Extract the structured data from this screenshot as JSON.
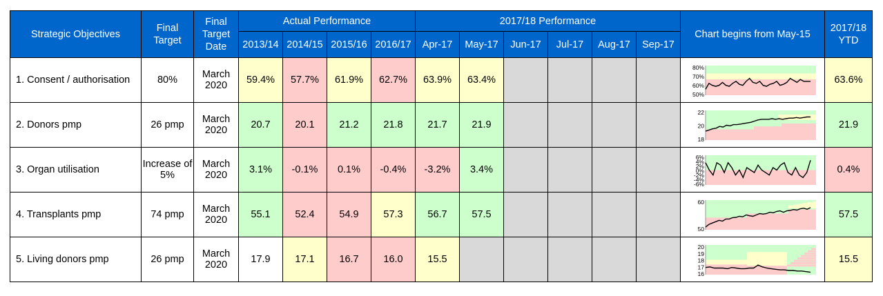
{
  "header": {
    "objectives": "Strategic Objectives",
    "final_target": "Final Target",
    "final_target_date": "Final Target Date",
    "actual_performance": "Actual Performance",
    "current_performance": "2017/18 Performance",
    "chart": "Chart begins from May-15",
    "ytd": "2017/18 YTD",
    "years": [
      "2013/14",
      "2014/15",
      "2015/16",
      "2016/17"
    ],
    "months": [
      "Apr-17",
      "May-17",
      "Jun-17",
      "Jul-17",
      "Aug-17",
      "Sep-17"
    ]
  },
  "colors": {
    "green": "#ccffcc",
    "yellow": "#ffffcc",
    "red": "#ffcccc",
    "empty": "#d9d9d9",
    "header": "#0066cc"
  },
  "rows": [
    {
      "objective": "1. Consent / authorisation",
      "target": "80%",
      "date": "March 2020",
      "years": [
        {
          "v": "59.4%",
          "c": "y"
        },
        {
          "v": "57.7%",
          "c": "r"
        },
        {
          "v": "61.9%",
          "c": "y"
        },
        {
          "v": "62.7%",
          "c": "r"
        }
      ],
      "months": [
        {
          "v": "63.9%",
          "c": "y"
        },
        {
          "v": "63.4%",
          "c": "y"
        },
        {
          "v": "",
          "c": "e"
        },
        {
          "v": "",
          "c": "e"
        },
        {
          "v": "",
          "c": "e"
        },
        {
          "v": "",
          "c": "e"
        }
      ],
      "ytd": {
        "v": "63.6%",
        "c": "y"
      }
    },
    {
      "objective": "2. Donors pmp",
      "target": "26 pmp",
      "date": "March 2020",
      "years": [
        {
          "v": "20.7",
          "c": "g"
        },
        {
          "v": "20.1",
          "c": "r"
        },
        {
          "v": "21.2",
          "c": "g"
        },
        {
          "v": "21.8",
          "c": "g"
        }
      ],
      "months": [
        {
          "v": "21.7",
          "c": "g"
        },
        {
          "v": "21.9",
          "c": "g"
        },
        {
          "v": "",
          "c": "e"
        },
        {
          "v": "",
          "c": "e"
        },
        {
          "v": "",
          "c": "e"
        },
        {
          "v": "",
          "c": "e"
        }
      ],
      "ytd": {
        "v": "21.9",
        "c": "g"
      }
    },
    {
      "objective": "3. Organ utilisation",
      "target": "Increase of 5%",
      "date": "March 2020",
      "years": [
        {
          "v": "3.1%",
          "c": "g"
        },
        {
          "v": "-0.1%",
          "c": "r"
        },
        {
          "v": "0.1%",
          "c": "r"
        },
        {
          "v": "-0.4%",
          "c": "r"
        }
      ],
      "months": [
        {
          "v": "-3.2%",
          "c": "r"
        },
        {
          "v": "3.4%",
          "c": "g"
        },
        {
          "v": "",
          "c": "e"
        },
        {
          "v": "",
          "c": "e"
        },
        {
          "v": "",
          "c": "e"
        },
        {
          "v": "",
          "c": "e"
        }
      ],
      "ytd": {
        "v": "0.4%",
        "c": "r"
      }
    },
    {
      "objective": "4. Transplants pmp",
      "target": "74 pmp",
      "date": "March 2020",
      "years": [
        {
          "v": "55.1",
          "c": "g"
        },
        {
          "v": "52.4",
          "c": "r"
        },
        {
          "v": "54.9",
          "c": "r"
        },
        {
          "v": "57.3",
          "c": "y"
        }
      ],
      "months": [
        {
          "v": "56.7",
          "c": "g"
        },
        {
          "v": "57.5",
          "c": "g"
        },
        {
          "v": "",
          "c": "e"
        },
        {
          "v": "",
          "c": "e"
        },
        {
          "v": "",
          "c": "e"
        },
        {
          "v": "",
          "c": "e"
        }
      ],
      "ytd": {
        "v": "57.5",
        "c": "g"
      }
    },
    {
      "objective": "5. Living donors pmp",
      "target": "26 pmp",
      "date": "March 2020",
      "years": [
        {
          "v": "17.9",
          "c": "w"
        },
        {
          "v": "17.1",
          "c": "y"
        },
        {
          "v": "16.7",
          "c": "r"
        },
        {
          "v": "16.0",
          "c": "r"
        }
      ],
      "months": [
        {
          "v": "15.5",
          "c": "y"
        },
        {
          "v": "",
          "c": "e"
        },
        {
          "v": "",
          "c": "e"
        },
        {
          "v": "",
          "c": "e"
        },
        {
          "v": "",
          "c": "e"
        },
        {
          "v": "",
          "c": "e"
        }
      ],
      "ytd": {
        "v": "15.5",
        "c": "y"
      }
    }
  ],
  "chart_data": [
    {
      "type": "line",
      "ylim": [
        50,
        80
      ],
      "yticks": [
        "80%",
        "70%",
        "60%",
        "50%"
      ],
      "values": [
        56,
        62,
        60,
        59,
        60,
        63,
        60,
        59,
        62,
        64,
        61,
        60,
        64,
        67,
        63,
        62,
        64,
        60,
        59,
        61,
        62,
        64,
        60,
        61,
        63,
        67,
        65,
        63,
        66,
        64,
        64,
        64
      ],
      "bands": {
        "green": [
          [
            74,
            74
          ]
        ],
        "yellow": [
          [
            66,
            74
          ]
        ],
        "red": [
          [
            50,
            66
          ]
        ]
      }
    },
    {
      "type": "line",
      "ylim": [
        18,
        23
      ],
      "yticks": [
        "22",
        "20",
        "18"
      ],
      "values": [
        19.5,
        19.7,
        19.9,
        20.0,
        20.3,
        20.2,
        20.5,
        20.4,
        20.6,
        20.6,
        20.7,
        20.8,
        20.9,
        21.0,
        21.2,
        21.4,
        21.5,
        21.5,
        21.5,
        21.6,
        21.5,
        21.6,
        21.5,
        21.6,
        21.7,
        21.7,
        21.8,
        21.7,
        21.8,
        21.9,
        21.9
      ],
      "bands": {}
    },
    {
      "type": "line",
      "ylim": [
        -6,
        6
      ],
      "yticks": [
        "6%",
        "4%",
        "2%",
        "0%",
        "-2%",
        "-4%",
        "-6%"
      ],
      "values": [
        3,
        0,
        -2,
        3,
        2,
        -1,
        3,
        1,
        -2,
        0,
        -3,
        1,
        0,
        -1,
        2,
        0,
        -1,
        -2,
        1,
        0,
        2,
        3,
        -1,
        -2,
        1,
        -2,
        -3,
        -1,
        4
      ],
      "bands": {}
    },
    {
      "type": "line",
      "ylim": [
        50,
        61
      ],
      "yticks": [
        "60",
        "50"
      ],
      "values": [
        51,
        52,
        52.5,
        53,
        53.5,
        53.2,
        54,
        54,
        54.5,
        54.6,
        55,
        54.8,
        55.5,
        55.2,
        55,
        55.5,
        56,
        55.8,
        56,
        56.5,
        56.3,
        56.8,
        57,
        56.5,
        57,
        57.2,
        57.5,
        57.3,
        57.8,
        58,
        57.6,
        58.2
      ],
      "bands": {}
    },
    {
      "type": "line",
      "ylim": [
        15.5,
        20.5
      ],
      "yticks": [
        "20",
        "19",
        "18",
        "17",
        "16"
      ],
      "values": [
        16.7,
        16.8,
        16.6,
        16.6,
        16.6,
        16.5,
        16.7,
        16.6,
        16.5,
        16.5,
        16.6,
        16.6,
        17.1,
        16.8,
        16.6,
        16.5,
        16.4,
        16.3,
        16.3,
        16.2,
        16.2,
        16.1,
        16.1,
        16.0,
        15.9
      ],
      "bands": {}
    }
  ]
}
